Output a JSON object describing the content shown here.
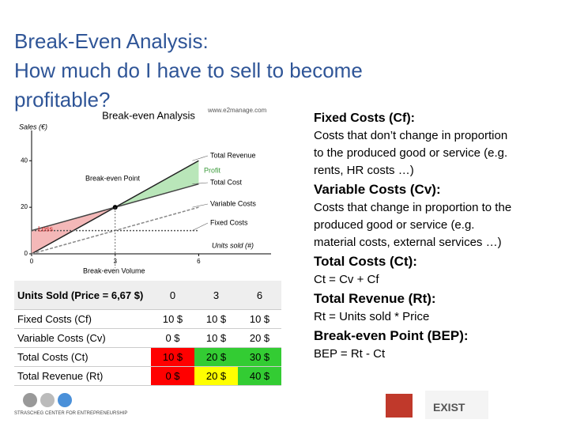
{
  "title": {
    "lines": [
      "Break-Even Analysis:",
      "How much do I have to sell to become",
      "profitable?"
    ]
  },
  "chart_data": {
    "type": "line",
    "title": "Break-even Analysis",
    "source": "www.e2manage.com",
    "y_label": "Sales (€)",
    "x_label": "Units sold (#)",
    "x": [
      0,
      3,
      6
    ],
    "xlim": [
      0,
      8.6
    ],
    "ylim": [
      0,
      53
    ],
    "xticks": [
      0,
      3,
      6
    ],
    "yticks": [
      0,
      20,
      40
    ],
    "series": [
      {
        "name": "Total Revenue",
        "color": "#222222",
        "values": [
          0,
          20,
          40
        ]
      },
      {
        "name": "Total Cost",
        "color": "#444444",
        "values": [
          10,
          20,
          30
        ]
      },
      {
        "name": "Variable Costs",
        "color": "#888888",
        "values": [
          0,
          10,
          20
        ]
      },
      {
        "name": "Fixed Costs",
        "color": "#555555",
        "values": [
          10,
          10,
          10
        ]
      }
    ],
    "profit_color": "#b9e6b9",
    "loss_color": "#f4b8b8",
    "annotations": [
      "Profit",
      "Loss",
      "Break-even Point",
      "Break-even Volume"
    ]
  },
  "table": {
    "header": [
      "Units Sold (Price = 6,67 $)",
      "0",
      "3",
      "6"
    ],
    "rows": [
      [
        "Fixed Costs (Cf)",
        "10 $",
        "10 $",
        "10 $"
      ],
      [
        "Variable Costs (Cv)",
        "0 $",
        "10 $",
        "20 $"
      ],
      [
        "Total Costs (Ct)",
        {
          "text": "10 $",
          "color": "#ff0000"
        },
        {
          "text": "20 $",
          "color": "#33cc33"
        },
        {
          "text": "30 $",
          "color": "#33cc33"
        }
      ],
      [
        "Total Revenue (Rt)",
        {
          "text": "0 $",
          "color": "#ff0000"
        },
        {
          "text": "20 $",
          "color": "#ffff00"
        },
        {
          "text": "40 $",
          "color": "#33cc33"
        }
      ]
    ]
  },
  "definitions": [
    {
      "heading": "Fixed Costs (Cf):",
      "text": "Costs that don’t change in proportion to the produced good or service (e.g. rents, HR costs …)"
    },
    {
      "heading": "Variable Costs (Cv):",
      "text": "Costs that change in proportion to the produced good or service (e.g. material costs, external services …)"
    },
    {
      "heading": "Total Costs (Ct):",
      "text": "Ct = Cv + Cf"
    },
    {
      "heading": "Total Revenue (Rt):",
      "text": "Rt = Units sold * Price"
    },
    {
      "heading": "Break-even Point (BEP):",
      "text": "BEP = Rt - Ct"
    }
  ],
  "logos": [
    "STRASCHEG CENTER FOR ENTREPRENEURSHIP",
    "EXIST"
  ]
}
